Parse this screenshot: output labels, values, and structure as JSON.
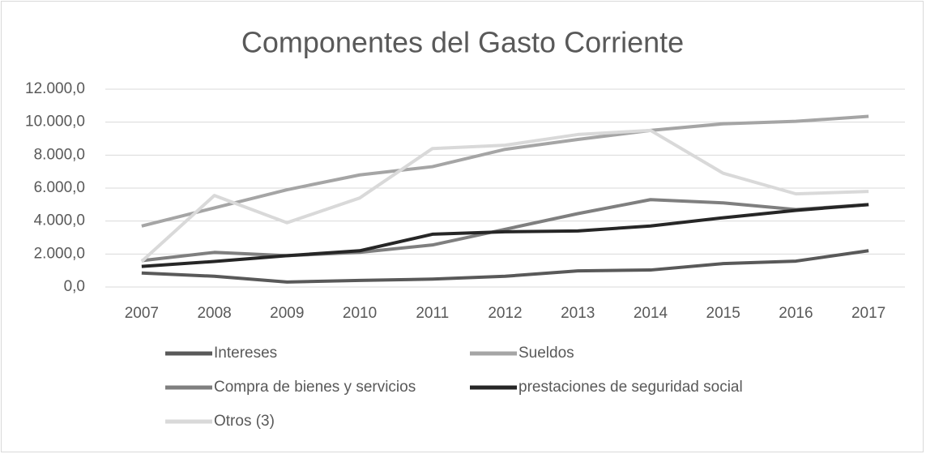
{
  "chart_data": {
    "type": "line",
    "title": "Componentes del Gasto Corriente",
    "categories": [
      "2007",
      "2008",
      "2009",
      "2010",
      "2011",
      "2012",
      "2013",
      "2014",
      "2015",
      "2016",
      "2017"
    ],
    "series": [
      {
        "name": "Intereses",
        "color": "#595959",
        "values": [
          850,
          650,
          300,
          400,
          480,
          650,
          980,
          1030,
          1420,
          1570,
          2200
        ]
      },
      {
        "name": "Sueldos",
        "color": "#a5a5a5",
        "values": [
          3700,
          4800,
          5900,
          6800,
          7300,
          8350,
          8950,
          9500,
          9900,
          10050,
          10350
        ]
      },
      {
        "name": "Compra de bienes y servicios",
        "color": "#7f7f7f",
        "values": [
          1600,
          2100,
          1900,
          2100,
          2550,
          3500,
          4450,
          5300,
          5100,
          4700,
          5000
        ]
      },
      {
        "name": "prestaciones de seguridad social",
        "color": "#262626",
        "values": [
          1250,
          1550,
          1900,
          2200,
          3200,
          3350,
          3400,
          3700,
          4200,
          4650,
          5000
        ]
      },
      {
        "name": "Otros (3)",
        "color": "#d9d9d9",
        "values": [
          1550,
          5550,
          3900,
          5400,
          8400,
          8600,
          9250,
          9500,
          6900,
          5650,
          5800
        ]
      }
    ],
    "ylim": [
      0,
      12000
    ],
    "yticks": [
      {
        "value": 0,
        "label": "0,0"
      },
      {
        "value": 2000,
        "label": "2.000,0"
      },
      {
        "value": 4000,
        "label": "4.000,0"
      },
      {
        "value": 6000,
        "label": "6.000,0"
      },
      {
        "value": 8000,
        "label": "8.000,0"
      },
      {
        "value": 10000,
        "label": "10.000,0"
      },
      {
        "value": 12000,
        "label": "12.000,0"
      }
    ],
    "grid": true
  }
}
